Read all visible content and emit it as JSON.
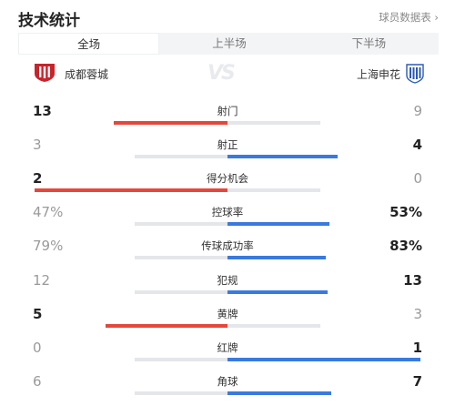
{
  "header": {
    "title": "技术统计",
    "player_stats_link": "球员数据表 ›"
  },
  "tabs": [
    {
      "label": "全场",
      "active": true
    },
    {
      "label": "上半场",
      "active": false
    },
    {
      "label": "下半场",
      "active": false
    }
  ],
  "teams": {
    "home": {
      "name": "成都蓉城",
      "color": "#c8242b"
    },
    "vs": "VS",
    "away": {
      "name": "上海申花",
      "color": "#2c5ab4"
    }
  },
  "colors": {
    "home_bar": "#e5473c",
    "away_bar": "#3a7ade",
    "track": "#e4e6ea"
  },
  "stats": [
    {
      "label": "射门",
      "home": "13",
      "away": "9",
      "home_share": 0.59,
      "leader": "home"
    },
    {
      "label": "射正",
      "home": "3",
      "away": "4",
      "home_share": 0.43,
      "leader": "away"
    },
    {
      "label": "得分机会",
      "home": "2",
      "away": "0",
      "home_share": 1.0,
      "leader": "home"
    },
    {
      "label": "控球率",
      "home": "47%",
      "away": "53%",
      "home_share": 0.47,
      "leader": "away"
    },
    {
      "label": "传球成功率",
      "home": "79%",
      "away": "83%",
      "home_share": 0.49,
      "leader": "away"
    },
    {
      "label": "犯规",
      "home": "12",
      "away": "13",
      "home_share": 0.48,
      "leader": "away"
    },
    {
      "label": "黄牌",
      "home": "5",
      "away": "3",
      "home_share": 0.63,
      "leader": "home"
    },
    {
      "label": "红牌",
      "home": "0",
      "away": "1",
      "home_share": 0.0,
      "leader": "away"
    },
    {
      "label": "角球",
      "home": "6",
      "away": "7",
      "home_share": 0.46,
      "leader": "away"
    }
  ]
}
